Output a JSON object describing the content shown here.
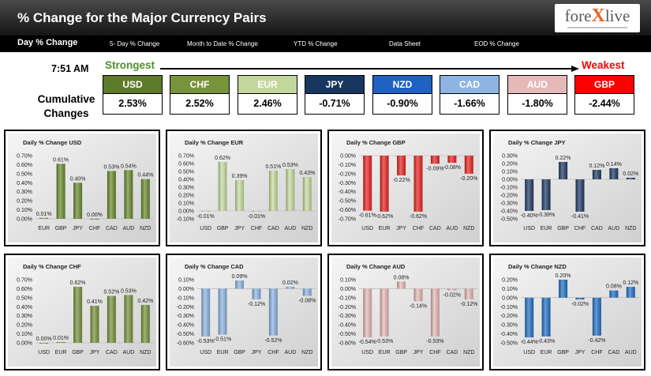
{
  "header": {
    "title": "% Change for the Major Currency Pairs",
    "logo": {
      "part1": "fore",
      "part2": "X",
      "part3": "live"
    }
  },
  "nav": {
    "items": [
      "Day % Change",
      "5- Day % Change",
      "Month to Date % Change",
      "YTD % Change",
      "Data Sheet",
      "EOD % Change"
    ],
    "active_index": 0
  },
  "summary": {
    "time": "7:51 AM",
    "strongest_label": "Strongest",
    "strongest_color": "#4f8f2f",
    "weakest_label": "Weakest",
    "weakest_color": "#ff0000",
    "cumulative_line1": "Cumulative",
    "cumulative_line2": "Changes",
    "currencies": [
      {
        "code": "USD",
        "value": "2.53%",
        "color": "#5d7b2a"
      },
      {
        "code": "CHF",
        "value": "2.52%",
        "color": "#77933c"
      },
      {
        "code": "EUR",
        "value": "2.46%",
        "color": "#c3d69b"
      },
      {
        "code": "JPY",
        "value": "-0.71%",
        "color": "#17375e"
      },
      {
        "code": "NZD",
        "value": "-0.90%",
        "color": "#1f62c1"
      },
      {
        "code": "CAD",
        "value": "-1.66%",
        "color": "#8db4e2"
      },
      {
        "code": "AUD",
        "value": "-1.80%",
        "color": "#e6b9b8"
      },
      {
        "code": "GBP",
        "value": "-2.44%",
        "color": "#ff0000"
      }
    ]
  },
  "chart_data": [
    {
      "type": "bar",
      "title": "Daily % Change USD",
      "categories": [
        "EUR",
        "GBP",
        "JPY",
        "CHF",
        "CAD",
        "AUD",
        "NZD"
      ],
      "values": [
        0.01,
        0.61,
        0.4,
        0.0,
        0.53,
        0.54,
        0.44
      ],
      "value_labels": [
        "0.01%",
        "0.61%",
        "0.40%",
        "0.00%",
        "0.53%",
        "0.54%",
        "0.44%"
      ],
      "ylim": [
        0,
        0.7
      ],
      "yticks": [
        0.7,
        0.6,
        0.5,
        0.4,
        0.3,
        0.2,
        0.1,
        0
      ],
      "ytick_labels": [
        "0.70%",
        "0.60%",
        "0.50%",
        "0.40%",
        "0.30%",
        "0.20%",
        "0.10%",
        "0.00%"
      ],
      "color": "#6a8a2e",
      "grid": false,
      "legend": "none"
    },
    {
      "type": "bar",
      "title": "Daily % Change EUR",
      "categories": [
        "USD",
        "GBP",
        "JPY",
        "CHF",
        "CAD",
        "AUD",
        "NZD"
      ],
      "values": [
        -0.01,
        0.62,
        0.39,
        -0.01,
        0.51,
        0.53,
        0.43
      ],
      "value_labels": [
        "-0.01%",
        "0.62%",
        "0.39%",
        "-0.01%",
        "0.51%",
        "0.53%",
        "0.43%"
      ],
      "ylim": [
        -0.1,
        0.7
      ],
      "yticks": [
        0.7,
        0.6,
        0.5,
        0.4,
        0.3,
        0.2,
        0.1,
        0,
        -0.1
      ],
      "ytick_labels": [
        "0.70%",
        "0.60%",
        "0.50%",
        "0.40%",
        "0.30%",
        "0.20%",
        "0.10%",
        "0.00%",
        "-0.10%"
      ],
      "color": "#c9dca0",
      "grid": false,
      "legend": "none"
    },
    {
      "type": "bar",
      "title": "Daily % Change GBP",
      "categories": [
        "USD",
        "EUR",
        "JPY",
        "CHF",
        "CAD",
        "AUD",
        "NZD"
      ],
      "values": [
        -0.61,
        -0.62,
        -0.22,
        -0.62,
        -0.09,
        -0.08,
        -0.2
      ],
      "value_labels": [
        "-0.61%",
        "-0.62%",
        "-0.22%",
        "-0.62%",
        "-0.09%",
        "-0.08%",
        "-0.20%"
      ],
      "ylim": [
        -0.7,
        0
      ],
      "yticks": [
        0,
        -0.1,
        -0.2,
        -0.3,
        -0.4,
        -0.5,
        -0.6,
        -0.7
      ],
      "ytick_labels": [
        "0.00%",
        "-0.10%",
        "-0.20%",
        "-0.30%",
        "-0.40%",
        "-0.50%",
        "-0.60%",
        "-0.70%"
      ],
      "color": "#e8231f",
      "grid": false,
      "legend": "none"
    },
    {
      "type": "bar",
      "title": "Daily % Change JPY",
      "categories": [
        "USD",
        "EUR",
        "GBP",
        "CHF",
        "CAD",
        "AUD",
        "NZD"
      ],
      "values": [
        -0.4,
        -0.39,
        0.22,
        -0.41,
        0.12,
        0.14,
        0.02
      ],
      "value_labels": [
        "-0.40%",
        "-0.39%",
        "0.22%",
        "-0.41%",
        "0.12%",
        "0.14%",
        "0.02%"
      ],
      "ylim": [
        -0.5,
        0.3
      ],
      "yticks": [
        0.3,
        0.2,
        0.1,
        0,
        -0.1,
        -0.2,
        -0.3,
        -0.4,
        -0.5
      ],
      "ytick_labels": [
        "0.30%",
        "0.20%",
        "0.10%",
        "0.00%",
        "-0.10%",
        "-0.20%",
        "-0.30%",
        "-0.40%",
        "-0.50%"
      ],
      "color": "#1f3a63",
      "grid": false,
      "legend": "none"
    },
    {
      "type": "bar",
      "title": "Daily % Change CHF",
      "categories": [
        "USD",
        "EUR",
        "GBP",
        "JPY",
        "CAD",
        "AUD",
        "NZD"
      ],
      "values": [
        0.0,
        0.01,
        0.62,
        0.41,
        0.52,
        0.53,
        0.42
      ],
      "value_labels": [
        "0.00%",
        "0.01%",
        "0.62%",
        "0.41%",
        "0.52%",
        "0.53%",
        "0.42%"
      ],
      "ylim": [
        0,
        0.7
      ],
      "yticks": [
        0.7,
        0.6,
        0.5,
        0.4,
        0.3,
        0.2,
        0.1,
        0
      ],
      "ytick_labels": [
        "0.70%",
        "0.60%",
        "0.50%",
        "0.40%",
        "0.30%",
        "0.20%",
        "0.10%",
        "0.00%"
      ],
      "color": "#77933c",
      "grid": false,
      "legend": "none"
    },
    {
      "type": "bar",
      "title": "Daily % Change CAD",
      "categories": [
        "USD",
        "EUR",
        "GBP",
        "JPY",
        "CHF",
        "AUD",
        "NZD"
      ],
      "values": [
        -0.53,
        -0.51,
        0.09,
        -0.12,
        -0.52,
        0.02,
        -0.08
      ],
      "value_labels": [
        "-0.53%",
        "-0.51%",
        "0.09%",
        "-0.12%",
        "-0.52%",
        "0.02%",
        "-0.08%"
      ],
      "ylim": [
        -0.6,
        0.1
      ],
      "yticks": [
        0.1,
        0,
        -0.1,
        -0.2,
        -0.3,
        -0.4,
        -0.5,
        -0.6
      ],
      "ytick_labels": [
        "0.10%",
        "0.00%",
        "-0.10%",
        "-0.20%",
        "-0.30%",
        "-0.40%",
        "-0.50%",
        "-0.60%"
      ],
      "color": "#8db4e2",
      "grid": false,
      "legend": "none"
    },
    {
      "type": "bar",
      "title": "Daily % Change AUD",
      "categories": [
        "USD",
        "EUR",
        "GBP",
        "JPY",
        "CHF",
        "CAD",
        "NZD"
      ],
      "values": [
        -0.54,
        -0.53,
        0.08,
        -0.14,
        -0.53,
        -0.02,
        -0.12
      ],
      "value_labels": [
        "-0.54%",
        "-0.53%",
        "0.08%",
        "-0.14%",
        "-0.53%",
        "-0.02%",
        "-0.12%"
      ],
      "ylim": [
        -0.6,
        0.1
      ],
      "yticks": [
        0.1,
        0,
        -0.1,
        -0.2,
        -0.3,
        -0.4,
        -0.5,
        -0.6
      ],
      "ytick_labels": [
        "0.10%",
        "0.00%",
        "-0.10%",
        "-0.20%",
        "-0.30%",
        "-0.40%",
        "-0.50%",
        "-0.60%"
      ],
      "color": "#e6b9b8",
      "grid": false,
      "legend": "none"
    },
    {
      "type": "bar",
      "title": "Daily % Change NZD",
      "categories": [
        "USD",
        "EUR",
        "GBP",
        "JPY",
        "CHF",
        "CAD",
        "AUD"
      ],
      "values": [
        -0.44,
        -0.43,
        0.2,
        -0.02,
        -0.42,
        0.08,
        0.12
      ],
      "value_labels": [
        "-0.44%",
        "-0.43%",
        "0.20%",
        "-0.02%",
        "-0.42%",
        "0.08%",
        "0.12%"
      ],
      "ylim": [
        -0.5,
        0.2
      ],
      "yticks": [
        0.2,
        0.1,
        0,
        -0.1,
        -0.2,
        -0.3,
        -0.4,
        -0.5
      ],
      "ytick_labels": [
        "0.20%",
        "0.10%",
        "0.00%",
        "-0.10%",
        "-0.20%",
        "-0.30%",
        "-0.40%",
        "-0.50%"
      ],
      "color": "#2270c4",
      "grid": false,
      "legend": "none"
    }
  ]
}
